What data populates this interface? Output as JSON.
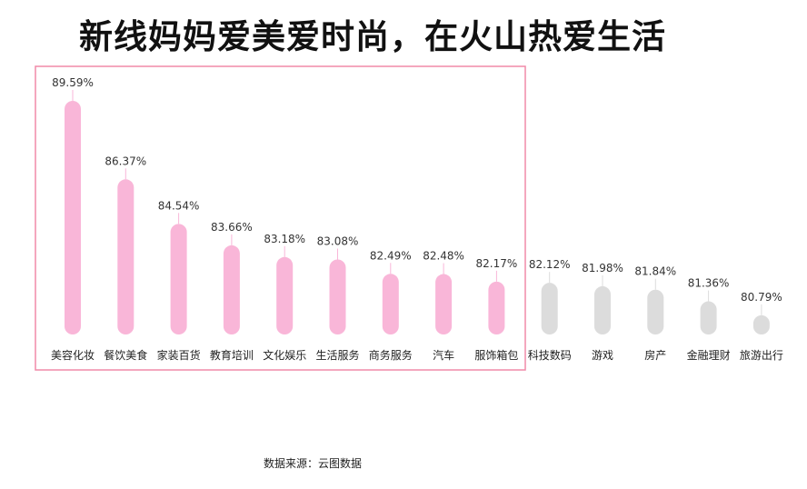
{
  "title": "新线妈妈爱美爱时尚，在火山热爱生活",
  "source": "数据来源：云图数据",
  "colors": {
    "highlight": "#f9b6d8",
    "normal": "#dcdcdc",
    "frame": "#f08aa8",
    "label": "#333333"
  },
  "chart_data": {
    "type": "bar",
    "title": "新线妈妈爱美爱时尚，在火山热爱生活",
    "xlabel": "",
    "ylabel": "",
    "grid": false,
    "highlighted_count": 9,
    "categories": [
      "美容化妆",
      "餐饮美食",
      "家装百货",
      "教育培训",
      "文化娱乐",
      "生活服务",
      "商务服务",
      "汽车",
      "服饰箱包",
      "科技数码",
      "游戏",
      "房产",
      "金融理财",
      "旅游出行"
    ],
    "values": [
      89.59,
      86.37,
      84.54,
      83.66,
      83.18,
      83.08,
      82.49,
      82.48,
      82.17,
      82.12,
      81.98,
      81.84,
      81.36,
      80.79
    ],
    "value_labels": [
      "89.59%",
      "86.37%",
      "84.54%",
      "83.66%",
      "83.18%",
      "83.08%",
      "82.49%",
      "82.48%",
      "82.17%",
      "82.12%",
      "81.98%",
      "81.84%",
      "81.36%",
      "80.79%"
    ]
  }
}
